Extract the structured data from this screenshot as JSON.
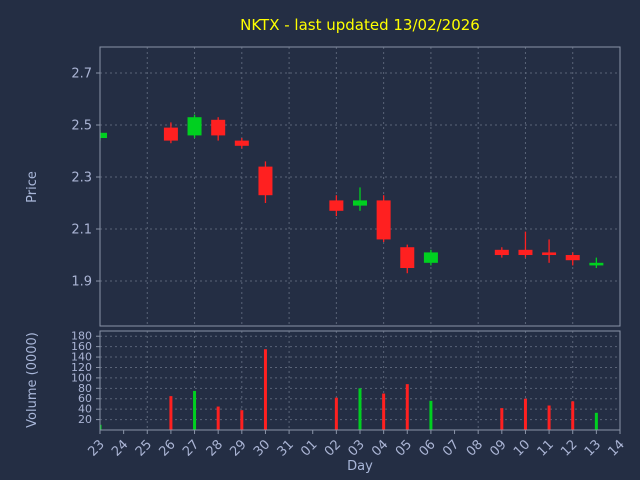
{
  "window": {
    "background": "#242e44"
  },
  "chart": {
    "title": "NKTX - last updated 13/02/2026",
    "title_color": "#ffff00",
    "price_axis_label": "Price",
    "volume_axis_label": "Volume (0000)",
    "day_axis_label": "Day",
    "label_color": "#a9b7d9"
  },
  "chart_data": {
    "type": "candlestick",
    "title": "NKTX - last updated 13/02/2026",
    "xlabel": "Day",
    "ylabel_price": "Price",
    "ylabel_volume": "Volume (0000)",
    "x_labels": [
      "23",
      "24",
      "25",
      "26",
      "27",
      "28",
      "29",
      "30",
      "31",
      "01",
      "02",
      "03",
      "04",
      "05",
      "06",
      "07",
      "08",
      "09",
      "10",
      "11",
      "12",
      "13",
      "14"
    ],
    "price_ticks": [
      1.9,
      2.1,
      2.3,
      2.5,
      2.7
    ],
    "price_ylim": [
      1.727,
      2.8
    ],
    "volume_ticks": [
      20,
      40,
      60,
      80,
      100,
      120,
      140,
      160,
      180
    ],
    "volume_ylim": [
      0,
      190
    ],
    "grid": true,
    "up_color": "#00d020",
    "down_color": "#ff2020",
    "grid_color": "#5a6478",
    "spine_color": "#8a94a8",
    "tick_color": "#aab4d4",
    "candles": [
      {
        "day": "23",
        "x_index": 0,
        "open": 2.45,
        "high": 2.48,
        "low": 2.44,
        "close": 2.47,
        "volume": 10
      },
      {
        "day": "26",
        "x_index": 3,
        "open": 2.49,
        "high": 2.51,
        "low": 2.43,
        "close": 2.44,
        "volume": 65
      },
      {
        "day": "27",
        "x_index": 4,
        "open": 2.46,
        "high": 2.54,
        "low": 2.45,
        "close": 2.53,
        "volume": 75
      },
      {
        "day": "28",
        "x_index": 5,
        "open": 2.52,
        "high": 2.53,
        "low": 2.44,
        "close": 2.46,
        "volume": 45
      },
      {
        "day": "29",
        "x_index": 6,
        "open": 2.44,
        "high": 2.45,
        "low": 2.41,
        "close": 2.42,
        "volume": 38
      },
      {
        "day": "30",
        "x_index": 7,
        "open": 2.34,
        "high": 2.36,
        "low": 2.2,
        "close": 2.23,
        "volume": 155
      },
      {
        "day": "02",
        "x_index": 10,
        "open": 2.21,
        "high": 2.23,
        "low": 2.15,
        "close": 2.17,
        "volume": 62
      },
      {
        "day": "03",
        "x_index": 11,
        "open": 2.19,
        "high": 2.26,
        "low": 2.17,
        "close": 2.21,
        "volume": 80
      },
      {
        "day": "04",
        "x_index": 12,
        "open": 2.21,
        "high": 2.23,
        "low": 2.05,
        "close": 2.06,
        "volume": 70
      },
      {
        "day": "05",
        "x_index": 13,
        "open": 2.03,
        "high": 2.04,
        "low": 1.93,
        "close": 1.95,
        "volume": 88
      },
      {
        "day": "06",
        "x_index": 14,
        "open": 1.97,
        "high": 2.02,
        "low": 1.96,
        "close": 2.01,
        "volume": 56
      },
      {
        "day": "09",
        "x_index": 17,
        "open": 2.02,
        "high": 2.03,
        "low": 1.99,
        "close": 2.0,
        "volume": 42
      },
      {
        "day": "10",
        "x_index": 18,
        "open": 2.02,
        "high": 2.09,
        "low": 1.99,
        "close": 2.0,
        "volume": 60
      },
      {
        "day": "11",
        "x_index": 19,
        "open": 2.01,
        "high": 2.06,
        "low": 1.97,
        "close": 2.0,
        "volume": 47
      },
      {
        "day": "12",
        "x_index": 20,
        "open": 2.0,
        "high": 2.01,
        "low": 1.96,
        "close": 1.98,
        "volume": 55
      },
      {
        "day": "13",
        "x_index": 21,
        "open": 1.96,
        "high": 1.99,
        "low": 1.95,
        "close": 1.97,
        "volume": 33
      }
    ]
  }
}
